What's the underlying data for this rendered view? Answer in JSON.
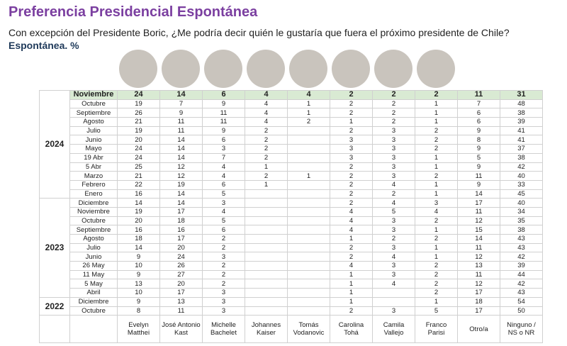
{
  "header": {
    "title": "Preferencia Presidencial Espontánea",
    "subtitle": "Con excepción del Presidente Boric, ¿Me podría decir quién le gustaría que fuera el próximo presidente de Chile?",
    "note": "Espontánea. %"
  },
  "table": {
    "columns": [
      "Evelyn\nMatthei",
      "José Antonio\nKast",
      "Michelle\nBachelet",
      "Johannes\nKaiser",
      "Tomás\nVodanovic",
      "Carolina\nTohá",
      "Camila\nVallejo",
      "Franco\nParisi",
      "Otro/a",
      "Ninguno /\nNS o NR"
    ],
    "groups": [
      {
        "year": "2024",
        "rows": [
          {
            "label": "Noviembre",
            "values": [
              24,
              14,
              6,
              4,
              4,
              2,
              2,
              2,
              11,
              31
            ]
          },
          {
            "label": "Octubre",
            "values": [
              19,
              7,
              9,
              4,
              1,
              2,
              2,
              1,
              7,
              48
            ]
          },
          {
            "label": "Septiembre",
            "values": [
              26,
              9,
              11,
              4,
              1,
              2,
              2,
              1,
              6,
              38
            ]
          },
          {
            "label": "Agosto",
            "values": [
              21,
              11,
              11,
              4,
              2,
              1,
              2,
              1,
              6,
              39
            ]
          },
          {
            "label": "Julio",
            "values": [
              19,
              11,
              9,
              2,
              null,
              2,
              3,
              2,
              9,
              41
            ]
          },
          {
            "label": "Junio",
            "values": [
              20,
              14,
              6,
              2,
              null,
              3,
              3,
              2,
              8,
              41
            ]
          },
          {
            "label": "Mayo",
            "values": [
              24,
              14,
              3,
              2,
              null,
              3,
              3,
              2,
              9,
              37
            ]
          },
          {
            "label": "19 Abr",
            "values": [
              24,
              14,
              7,
              2,
              null,
              3,
              3,
              1,
              5,
              38
            ]
          },
          {
            "label": "5 Abr",
            "values": [
              25,
              12,
              4,
              1,
              null,
              2,
              3,
              1,
              9,
              42
            ]
          },
          {
            "label": "Marzo",
            "values": [
              21,
              12,
              4,
              2,
              1,
              2,
              3,
              2,
              11,
              40
            ]
          },
          {
            "label": "Febrero",
            "values": [
              22,
              19,
              6,
              1,
              null,
              2,
              4,
              1,
              9,
              33
            ]
          },
          {
            "label": "Enero",
            "values": [
              16,
              14,
              5,
              null,
              null,
              2,
              2,
              1,
              14,
              45
            ]
          }
        ]
      },
      {
        "year": "2023",
        "rows": [
          {
            "label": "Diciembre",
            "values": [
              14,
              14,
              3,
              null,
              null,
              2,
              4,
              3,
              17,
              40
            ]
          },
          {
            "label": "Noviembre",
            "values": [
              19,
              17,
              4,
              null,
              null,
              4,
              5,
              4,
              11,
              34
            ]
          },
          {
            "label": "Octubre",
            "values": [
              20,
              18,
              5,
              null,
              null,
              4,
              3,
              2,
              12,
              35
            ]
          },
          {
            "label": "Septiembre",
            "values": [
              16,
              16,
              6,
              null,
              null,
              4,
              3,
              1,
              15,
              38
            ]
          },
          {
            "label": "Agosto",
            "values": [
              18,
              17,
              2,
              null,
              null,
              1,
              2,
              2,
              14,
              43
            ]
          },
          {
            "label": "Julio",
            "values": [
              14,
              20,
              2,
              null,
              null,
              2,
              3,
              1,
              11,
              43
            ]
          },
          {
            "label": "Junio",
            "values": [
              9,
              24,
              3,
              null,
              null,
              2,
              4,
              1,
              12,
              42
            ]
          },
          {
            "label": "26 May",
            "values": [
              10,
              26,
              2,
              null,
              null,
              4,
              3,
              2,
              13,
              39
            ]
          },
          {
            "label": "11 May",
            "values": [
              9,
              27,
              2,
              null,
              null,
              1,
              3,
              2,
              11,
              44
            ]
          },
          {
            "label": "5 May",
            "values": [
              13,
              20,
              2,
              null,
              null,
              1,
              4,
              2,
              12,
              42
            ]
          },
          {
            "label": "Abril",
            "values": [
              10,
              17,
              3,
              null,
              null,
              1,
              null,
              2,
              17,
              43
            ]
          }
        ]
      },
      {
        "year": "2022",
        "rows": [
          {
            "label": "Diciembre",
            "values": [
              9,
              13,
              3,
              null,
              null,
              1,
              null,
              1,
              18,
              54
            ]
          },
          {
            "label": "Octubre",
            "values": [
              8,
              11,
              3,
              null,
              null,
              2,
              3,
              5,
              17,
              50
            ]
          }
        ]
      }
    ]
  }
}
